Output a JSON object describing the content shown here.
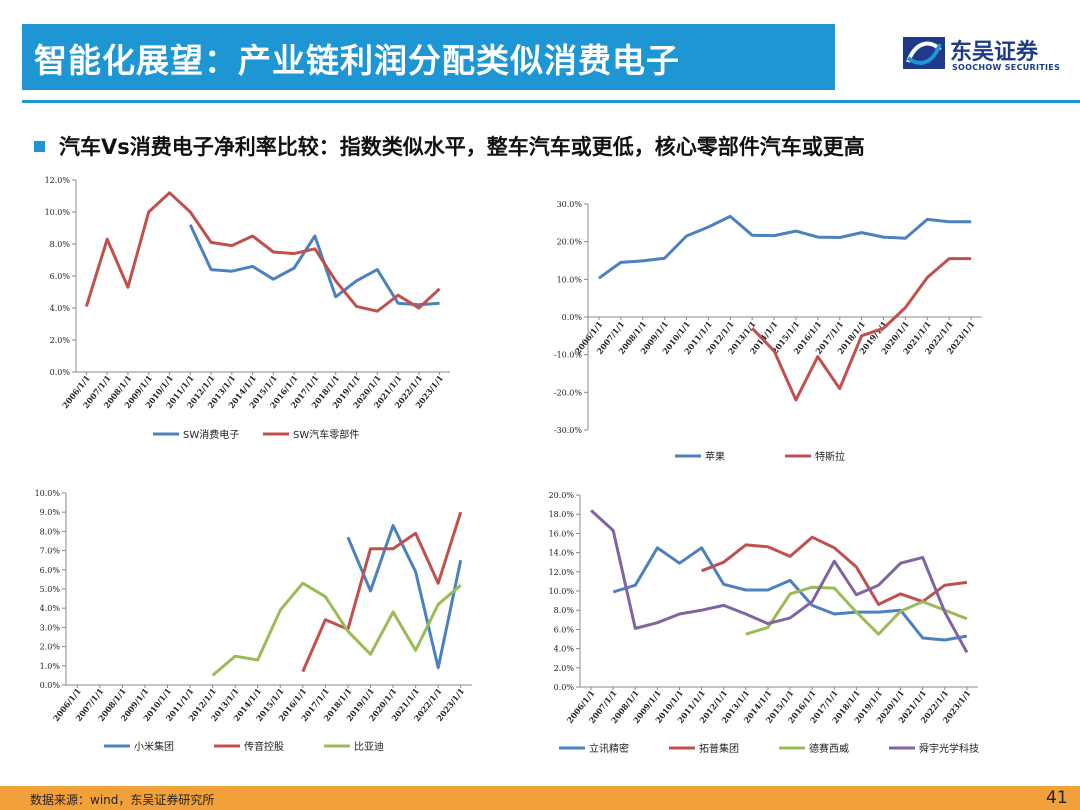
{
  "header": {
    "title": "智能化展望：产业链利润分配类似消费电子"
  },
  "logo": {
    "cn": "东吴证券",
    "en": "SOOCHOW SECURITIES",
    "icon": "soochow-logo-icon"
  },
  "subheading": {
    "text": "汽车Vs消费电子净利率比较：指数类似水平，整车汽车或更低，核心零部件汽车或更高"
  },
  "footer": {
    "source": "数据来源：wind，东吴证券研究所",
    "page": "41"
  },
  "colors": {
    "accent": "#1e96d3",
    "footer": "#f2a03a",
    "blue": "#4c80be",
    "red": "#c0504d",
    "green": "#9bbb59",
    "purple": "#8064a2"
  },
  "chart_data": [
    {
      "type": "line",
      "x": [
        "2006/1/1",
        "2007/1/1",
        "2008/1/1",
        "2009/1/1",
        "2010/1/1",
        "2011/1/1",
        "2012/1/1",
        "2013/1/1",
        "2014/1/1",
        "2015/1/1",
        "2016/1/1",
        "2017/1/1",
        "2018/1/1",
        "2019/1/1",
        "2020/1/1",
        "2021/1/1",
        "2022/1/1",
        "2023/1/1"
      ],
      "ylim": [
        0,
        12
      ],
      "yticks": [
        "0.0%",
        "2.0%",
        "4.0%",
        "6.0%",
        "8.0%",
        "10.0%",
        "12.0%"
      ],
      "legend_position": "bottom",
      "series": [
        {
          "name": "SW消费电子",
          "color": "#4c80be",
          "values": [
            null,
            null,
            null,
            null,
            null,
            9.2,
            6.4,
            6.3,
            6.6,
            5.8,
            6.5,
            8.5,
            4.7,
            5.7,
            6.4,
            4.3,
            4.2,
            4.3
          ]
        },
        {
          "name": "SW汽车零部件",
          "color": "#c0504d",
          "values": [
            4.1,
            8.3,
            5.3,
            10.0,
            11.2,
            10.0,
            8.1,
            7.9,
            8.5,
            7.5,
            7.4,
            7.7,
            5.7,
            4.1,
            3.8,
            4.8,
            4.0,
            5.2
          ]
        }
      ]
    },
    {
      "type": "line",
      "x": [
        "2006/1/1",
        "2007/1/1",
        "2008/1/1",
        "2009/1/1",
        "2010/1/1",
        "2011/1/1",
        "2012/1/1",
        "2013/1/1",
        "2014/1/1",
        "2015/1/1",
        "2016/1/1",
        "2017/1/1",
        "2018/1/1",
        "2019/1/1",
        "2020/1/1",
        "2021/1/1",
        "2022/1/1",
        "2023/1/1"
      ],
      "ylim": [
        -30,
        30
      ],
      "yticks": [
        "-30.0%",
        "-20.0%",
        "-10.0%",
        "0.0%",
        "10.0%",
        "20.0%",
        "30.0%"
      ],
      "legend_position": "bottom",
      "series": [
        {
          "name": "苹果",
          "color": "#4c80be",
          "values": [
            10.3,
            14.5,
            14.9,
            15.6,
            21.5,
            23.9,
            26.7,
            21.7,
            21.6,
            22.8,
            21.2,
            21.1,
            22.4,
            21.2,
            20.9,
            25.9,
            25.3,
            25.3
          ]
        },
        {
          "name": "特斯拉",
          "color": "#c0504d",
          "values": [
            null,
            null,
            null,
            null,
            null,
            null,
            null,
            -3.0,
            -9.0,
            -22.0,
            -10.5,
            -19.0,
            -5.0,
            -3.0,
            2.5,
            10.5,
            15.5,
            15.5
          ]
        }
      ]
    },
    {
      "type": "line",
      "x": [
        "2006/1/1",
        "2007/1/1",
        "2008/1/1",
        "2009/1/1",
        "2010/1/1",
        "2011/1/1",
        "2012/1/1",
        "2013/1/1",
        "2014/1/1",
        "2015/1/1",
        "2016/1/1",
        "2017/1/1",
        "2018/1/1",
        "2019/1/1",
        "2020/1/1",
        "2021/1/1",
        "2022/1/1",
        "2023/1/1"
      ],
      "ylim": [
        0,
        10
      ],
      "yticks": [
        "0.0%",
        "1.0%",
        "2.0%",
        "3.0%",
        "4.0%",
        "5.0%",
        "6.0%",
        "7.0%",
        "8.0%",
        "9.0%",
        "10.0%"
      ],
      "legend_position": "bottom",
      "series": [
        {
          "name": "小米集团",
          "color": "#4c80be",
          "values": [
            null,
            null,
            null,
            null,
            null,
            null,
            null,
            null,
            null,
            null,
            null,
            null,
            7.7,
            4.9,
            8.3,
            5.9,
            0.9,
            6.5
          ]
        },
        {
          "name": "传音控股",
          "color": "#c0504d",
          "values": [
            null,
            null,
            null,
            null,
            null,
            null,
            null,
            null,
            null,
            null,
            0.7,
            3.4,
            2.9,
            7.1,
            7.1,
            7.9,
            5.3,
            9.0
          ]
        },
        {
          "name": "比亚迪",
          "color": "#9bbb59",
          "values": [
            null,
            null,
            null,
            null,
            null,
            null,
            0.5,
            1.5,
            1.3,
            3.9,
            5.3,
            4.6,
            2.8,
            1.6,
            3.8,
            1.8,
            4.2,
            5.2
          ]
        }
      ]
    },
    {
      "type": "line",
      "x": [
        "2006/1/1",
        "2007/1/1",
        "2008/1/1",
        "2009/1/1",
        "2010/1/1",
        "2011/1/1",
        "2012/1/1",
        "2013/1/1",
        "2014/1/1",
        "2015/1/1",
        "2016/1/1",
        "2017/1/1",
        "2018/1/1",
        "2019/1/1",
        "2020/1/1",
        "2021/1/1",
        "2022/1/1",
        "2023/1/1"
      ],
      "ylim": [
        0,
        20
      ],
      "yticks": [
        "0.0%",
        "2.0%",
        "4.0%",
        "6.0%",
        "8.0%",
        "10.0%",
        "12.0%",
        "14.0%",
        "16.0%",
        "18.0%",
        "20.0%"
      ],
      "legend_position": "bottom",
      "series": [
        {
          "name": "立讯精密",
          "color": "#4c80be",
          "values": [
            null,
            9.9,
            10.6,
            14.5,
            12.9,
            14.5,
            10.7,
            10.1,
            10.1,
            11.1,
            8.5,
            7.6,
            7.8,
            7.8,
            8.0,
            5.1,
            4.9,
            5.3
          ]
        },
        {
          "name": "拓普集团",
          "color": "#c0504d",
          "values": [
            null,
            null,
            null,
            null,
            null,
            12.1,
            13.0,
            14.8,
            14.6,
            13.6,
            15.6,
            14.5,
            12.5,
            8.6,
            9.7,
            8.9,
            10.6,
            10.9
          ]
        },
        {
          "name": "德赛西威",
          "color": "#9bbb59",
          "values": [
            null,
            null,
            null,
            null,
            null,
            null,
            null,
            5.5,
            6.2,
            9.7,
            10.4,
            10.3,
            7.8,
            5.5,
            7.9,
            8.9,
            8.0,
            7.1
          ]
        },
        {
          "name": "舜宇光学科技",
          "color": "#8064a2",
          "values": [
            18.4,
            16.3,
            6.1,
            6.7,
            7.6,
            8.0,
            8.5,
            7.6,
            6.6,
            7.2,
            8.9,
            13.1,
            9.6,
            10.6,
            12.9,
            13.5,
            7.8,
            3.6
          ]
        }
      ]
    }
  ]
}
